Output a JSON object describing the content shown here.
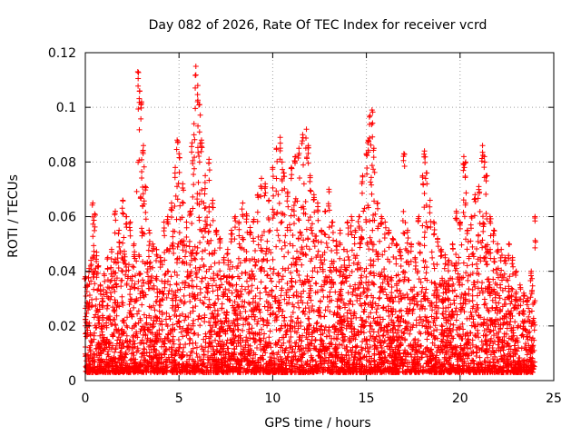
{
  "chart_data": {
    "type": "scatter",
    "title": "Day 082 of 2026, Rate Of TEC Index for receiver vcrd",
    "xlabel": "GPS time / hours",
    "ylabel": "ROTI / TECUs",
    "xlim": [
      0,
      25
    ],
    "ylim": [
      0,
      0.12
    ],
    "x_ticks": [
      0,
      5,
      10,
      15,
      20,
      25
    ],
    "y_ticks": [
      0,
      0.02,
      0.04,
      0.06,
      0.08,
      0.1,
      0.12
    ],
    "x_tick_labels": [
      "0",
      "5",
      "10",
      "15",
      "20",
      "25"
    ],
    "y_tick_labels": [
      "0",
      "0.02",
      "0.04",
      "0.06",
      "0.08",
      "0.1",
      "0.12"
    ],
    "grid": true,
    "marker": "+",
    "color": "#ff0000",
    "series": [
      {
        "x": [
          0.0,
          0.1,
          0.2,
          0.3,
          0.4,
          0.5,
          0.6,
          0.7,
          0.8,
          0.9,
          1.0,
          1.2,
          1.4,
          1.6,
          1.8,
          2.0,
          2.2,
          2.4,
          2.6,
          2.8,
          2.9,
          3.0,
          3.1,
          3.2,
          3.4,
          3.6,
          3.8,
          4.0,
          4.2,
          4.4,
          4.6,
          4.8,
          4.9,
          5.0,
          5.2,
          5.4,
          5.6,
          5.7,
          5.8,
          5.9,
          6.0,
          6.1,
          6.2,
          6.4,
          6.6,
          6.8,
          7.0,
          7.2,
          7.4,
          7.6,
          7.8,
          8.0,
          8.2,
          8.4,
          8.6,
          8.8,
          9.0,
          9.2,
          9.4,
          9.6,
          9.8,
          10.0,
          10.2,
          10.4,
          10.5,
          10.6,
          10.8,
          11.0,
          11.2,
          11.4,
          11.6,
          11.8,
          11.9,
          12.0,
          12.2,
          12.4,
          12.6,
          12.8,
          13.0,
          13.2,
          13.4,
          13.6,
          13.8,
          14.0,
          14.2,
          14.4,
          14.6,
          14.8,
          15.0,
          15.1,
          15.2,
          15.3,
          15.4,
          15.6,
          15.8,
          16.0,
          16.2,
          16.4,
          16.6,
          16.8,
          17.0,
          17.2,
          17.4,
          17.6,
          17.8,
          18.0,
          18.1,
          18.2,
          18.4,
          18.6,
          18.8,
          19.0,
          19.2,
          19.4,
          19.6,
          19.8,
          20.0,
          20.2,
          20.3,
          20.4,
          20.6,
          20.8,
          21.0,
          21.2,
          21.3,
          21.4,
          21.6,
          21.8,
          22.0,
          22.2,
          22.4,
          22.6,
          22.8,
          23.0,
          23.2,
          23.4,
          23.6,
          23.8,
          24.0
        ],
        "y": [
          0.038,
          0.035,
          0.041,
          0.044,
          0.065,
          0.061,
          0.047,
          0.042,
          0.035,
          0.03,
          0.039,
          0.045,
          0.048,
          0.062,
          0.055,
          0.066,
          0.06,
          0.058,
          0.05,
          0.113,
          0.106,
          0.102,
          0.086,
          0.071,
          0.055,
          0.05,
          0.048,
          0.045,
          0.058,
          0.06,
          0.065,
          0.078,
          0.088,
          0.083,
          0.072,
          0.058,
          0.062,
          0.087,
          0.094,
          0.115,
          0.108,
          0.101,
          0.088,
          0.075,
          0.081,
          0.066,
          0.055,
          0.052,
          0.045,
          0.048,
          0.055,
          0.06,
          0.058,
          0.065,
          0.061,
          0.056,
          0.059,
          0.068,
          0.074,
          0.072,
          0.066,
          0.078,
          0.085,
          0.089,
          0.08,
          0.076,
          0.069,
          0.078,
          0.082,
          0.085,
          0.09,
          0.092,
          0.086,
          0.075,
          0.068,
          0.065,
          0.055,
          0.062,
          0.07,
          0.058,
          0.051,
          0.055,
          0.048,
          0.058,
          0.06,
          0.055,
          0.06,
          0.075,
          0.083,
          0.088,
          0.097,
          0.099,
          0.085,
          0.065,
          0.06,
          0.058,
          0.055,
          0.052,
          0.05,
          0.048,
          0.083,
          0.055,
          0.05,
          0.045,
          0.06,
          0.075,
          0.084,
          0.076,
          0.066,
          0.058,
          0.052,
          0.048,
          0.046,
          0.044,
          0.05,
          0.062,
          0.058,
          0.082,
          0.08,
          0.055,
          0.06,
          0.068,
          0.071,
          0.086,
          0.082,
          0.075,
          0.06,
          0.055,
          0.05,
          0.048,
          0.045,
          0.05,
          0.045,
          0.04,
          0.035,
          0.032,
          0.03,
          0.04,
          0.06
        ]
      }
    ]
  }
}
